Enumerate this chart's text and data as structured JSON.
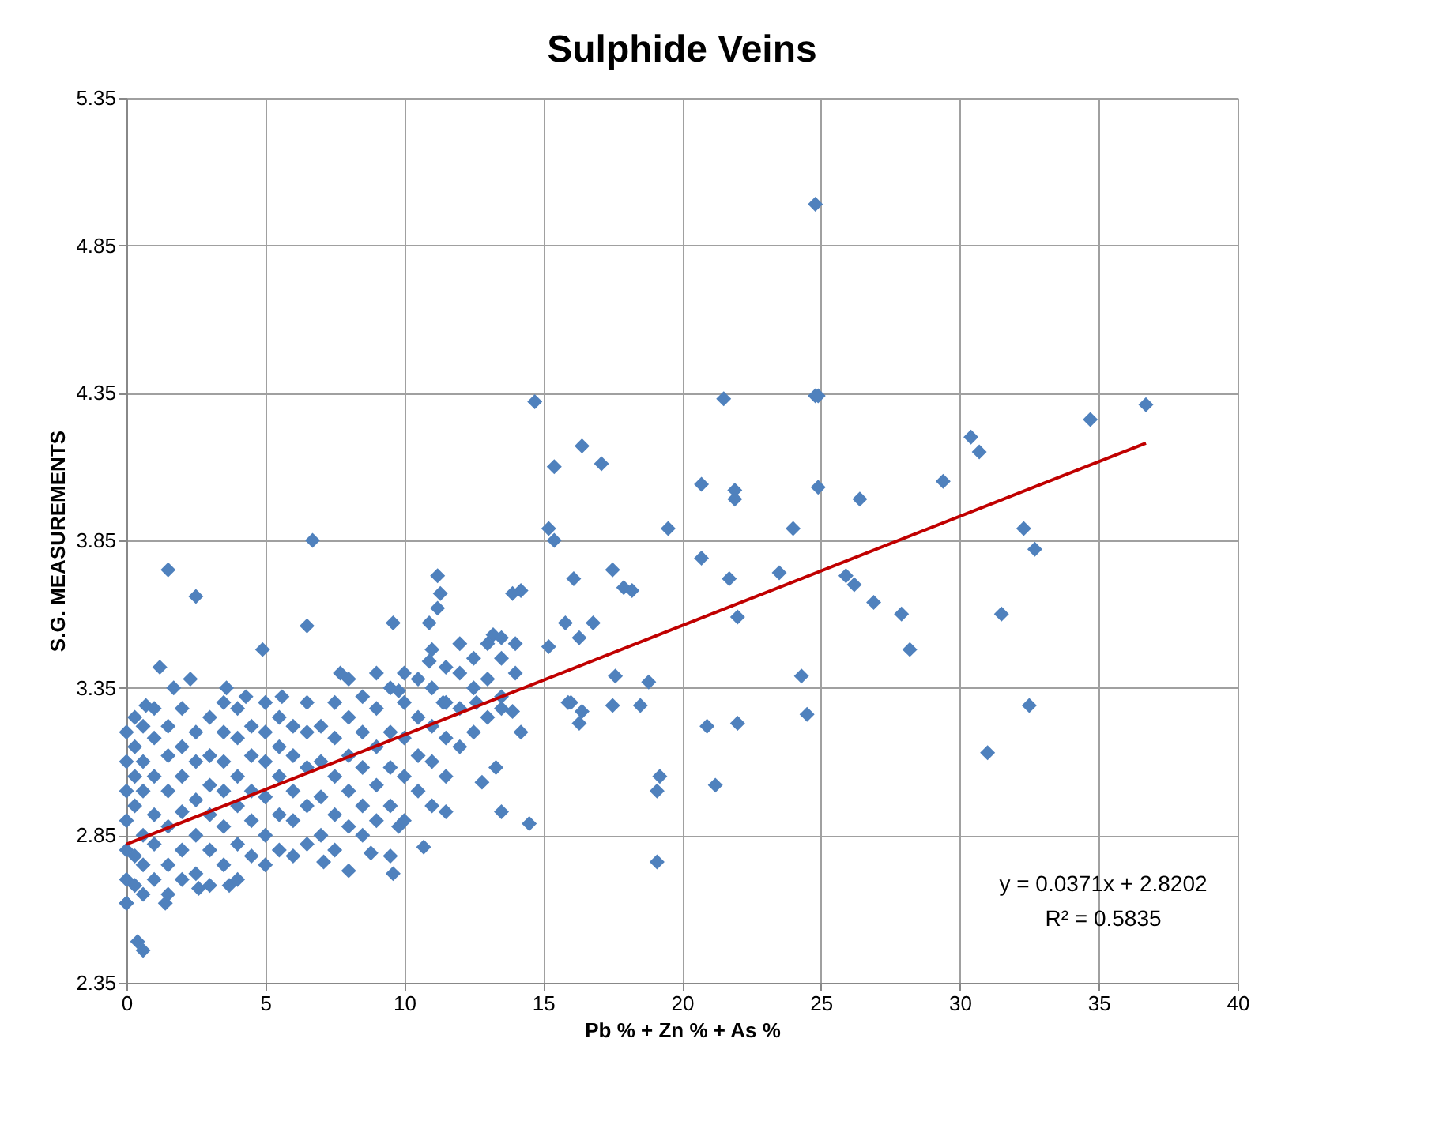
{
  "chart_data": {
    "type": "scatter",
    "title": "Sulphide Veins",
    "xlabel": "Pb % + Zn % + As %",
    "ylabel": "S.G. MEASUREMENTS",
    "xlim": [
      0,
      40
    ],
    "xticks": [
      0,
      5,
      10,
      15,
      20,
      25,
      30,
      35,
      40
    ],
    "ylim": [
      2.35,
      5.35
    ],
    "yticks": [
      2.35,
      2.85,
      3.35,
      3.85,
      4.35,
      4.85,
      5.35
    ],
    "grid": true,
    "marker": "diamond",
    "annotations": [
      "y = 0.0371x + 2.8202",
      "R² = 0.5835"
    ],
    "series": [
      {
        "color": "#4f81bd",
        "x": [
          24.8,
          34.7,
          36.7,
          14.7,
          21.5,
          24.8,
          24.9,
          16.4,
          17.1,
          15.4,
          30.4,
          30.7,
          29.4,
          20.7,
          21.9,
          21.9,
          24.9,
          26.4,
          19.5,
          15.2,
          15.4,
          24.0,
          32.3,
          32.7,
          6.7,
          1.5,
          2.5,
          20.7,
          16.1,
          17.5,
          17.9,
          18.2,
          21.7,
          23.5,
          25.9,
          26.2,
          26.9,
          27.9,
          28.2,
          31.5,
          14.2,
          11.2,
          11.3,
          11.2,
          16.8,
          15.8,
          16.3,
          22.0,
          15.2,
          6.5,
          9.6,
          4.9,
          17.6,
          16.0,
          16.4,
          16.3,
          17.5,
          18.8,
          18.5,
          24.3,
          24.5,
          20.9,
          22.0,
          32.5,
          31.0,
          19.2,
          19.1,
          21.2,
          19.1,
          14.5,
          0.4,
          0.6,
          13.5,
          14.2,
          13.5,
          11.5,
          10.7,
          9.6,
          8.0,
          1.2,
          2.3,
          1.7,
          3.6,
          4.3,
          10.9,
          13.9,
          13.2,
          10.9,
          7.7,
          5.6,
          0.7,
          9.8,
          12.6,
          15.9,
          13.9,
          11.4,
          7.1,
          3.7,
          2.6,
          1.4,
          0.0,
          8.8,
          12.8,
          13.3,
          9.8,
          0,
          0,
          0,
          0,
          0,
          0,
          0,
          0.3,
          0.3,
          0.3,
          0.3,
          0.3,
          0.3,
          0.6,
          0.6,
          0.6,
          0.6,
          0.6,
          0.6,
          1.0,
          1.0,
          1.0,
          1.0,
          1.0,
          1.0,
          1.5,
          1.5,
          1.5,
          1.5,
          1.5,
          1.5,
          2.0,
          2.0,
          2.0,
          2.0,
          2.0,
          2.0,
          2.5,
          2.5,
          2.5,
          2.5,
          2.5,
          3.0,
          3.0,
          3.0,
          3.0,
          3.0,
          3.0,
          3.5,
          3.5,
          3.5,
          3.5,
          3.5,
          3.5,
          4.0,
          4.0,
          4.0,
          4.0,
          4.0,
          4.0,
          4.5,
          4.5,
          4.5,
          4.5,
          4.5,
          5.0,
          5.0,
          5.0,
          5.0,
          5.0,
          5.0,
          5.5,
          5.5,
          5.5,
          5.5,
          5.5,
          6.0,
          6.0,
          6.0,
          6.0,
          6.0,
          6.5,
          6.5,
          6.5,
          6.5,
          6.5,
          7.0,
          7.0,
          7.0,
          7.0,
          7.5,
          7.5,
          7.5,
          7.5,
          7.5,
          8.0,
          8.0,
          8.0,
          8.0,
          8.0,
          8.5,
          8.5,
          8.5,
          8.5,
          8.5,
          9.0,
          9.0,
          9.0,
          9.0,
          9.0,
          9.5,
          9.5,
          9.5,
          9.5,
          9.5,
          10.0,
          10.0,
          10.0,
          10.0,
          10.0,
          10.5,
          10.5,
          10.5,
          10.5,
          11.0,
          11.0,
          11.0,
          11.0,
          11.0,
          11.5,
          11.5,
          11.5,
          11.5,
          12.0,
          12.0,
          12.0,
          12.0,
          12.5,
          12.5,
          12.5,
          13.0,
          13.0,
          13.0,
          13.5,
          13.5,
          13.5,
          14.0,
          14.0
        ],
        "values": [
          4.99,
          4.26,
          4.31,
          4.32,
          4.33,
          4.34,
          4.34,
          4.17,
          4.11,
          4.1,
          4.2,
          4.15,
          4.05,
          4.04,
          4.02,
          3.99,
          4.03,
          3.99,
          3.89,
          3.89,
          3.85,
          3.89,
          3.89,
          3.82,
          3.85,
          3.75,
          3.66,
          3.79,
          3.72,
          3.75,
          3.69,
          3.68,
          3.72,
          3.74,
          3.73,
          3.7,
          3.64,
          3.6,
          3.48,
          3.6,
          3.68,
          3.73,
          3.67,
          3.62,
          3.57,
          3.57,
          3.52,
          3.59,
          3.49,
          3.56,
          3.57,
          3.48,
          3.39,
          3.3,
          3.27,
          3.23,
          3.29,
          3.37,
          3.29,
          3.39,
          3.26,
          3.22,
          3.23,
          3.29,
          3.13,
          3.05,
          3.0,
          3.02,
          2.76,
          2.89,
          2.49,
          2.46,
          3.28,
          3.2,
          2.93,
          2.93,
          2.81,
          2.72,
          2.73,
          3.42,
          3.38,
          3.35,
          3.35,
          3.32,
          3.57,
          3.67,
          3.53,
          3.44,
          3.4,
          3.32,
          3.29,
          3.34,
          3.3,
          3.3,
          3.27,
          3.3,
          2.76,
          2.68,
          2.67,
          2.62,
          2.62,
          2.79,
          3.03,
          3.08,
          2.88,
          2.62,
          2.7,
          2.8,
          2.9,
          3.0,
          3.1,
          3.2,
          2.68,
          2.78,
          2.95,
          3.05,
          3.15,
          3.25,
          2.65,
          2.75,
          2.85,
          3.0,
          3.1,
          3.22,
          2.7,
          2.82,
          2.92,
          3.05,
          3.18,
          3.28,
          2.65,
          2.75,
          2.88,
          3.0,
          3.12,
          3.22,
          2.7,
          2.8,
          2.93,
          3.05,
          3.15,
          3.28,
          2.72,
          2.85,
          2.97,
          3.1,
          3.2,
          2.68,
          2.8,
          2.92,
          3.02,
          3.12,
          3.25,
          2.75,
          2.88,
          3.0,
          3.1,
          3.2,
          3.3,
          2.7,
          2.82,
          2.95,
          3.05,
          3.18,
          3.28,
          2.78,
          2.9,
          3.0,
          3.12,
          3.22,
          2.75,
          2.85,
          2.98,
          3.1,
          3.2,
          3.3,
          2.8,
          2.92,
          3.05,
          3.15,
          3.25,
          2.78,
          2.9,
          3.0,
          3.12,
          3.22,
          2.82,
          2.95,
          3.08,
          3.2,
          3.3,
          2.85,
          2.98,
          3.1,
          3.22,
          2.8,
          2.92,
          3.05,
          3.18,
          3.3,
          2.88,
          3.0,
          3.12,
          3.25,
          3.38,
          2.85,
          2.95,
          3.08,
          3.2,
          3.32,
          2.9,
          3.02,
          3.15,
          3.28,
          3.4,
          2.78,
          2.95,
          3.08,
          3.2,
          3.35,
          2.9,
          3.05,
          3.18,
          3.3,
          3.4,
          3.0,
          3.12,
          3.25,
          3.38,
          2.95,
          3.1,
          3.22,
          3.35,
          3.48,
          3.05,
          3.18,
          3.3,
          3.42,
          3.15,
          3.28,
          3.4,
          3.5,
          3.2,
          3.35,
          3.45,
          3.25,
          3.38,
          3.5,
          3.32,
          3.45,
          3.52,
          3.4,
          3.5
        ]
      },
      {
        "type": "line",
        "color": "#c00000",
        "marker": "none",
        "line_style": "solid",
        "x": [
          0,
          36.7
        ],
        "values": [
          2.82,
          4.18
        ]
      }
    ]
  }
}
